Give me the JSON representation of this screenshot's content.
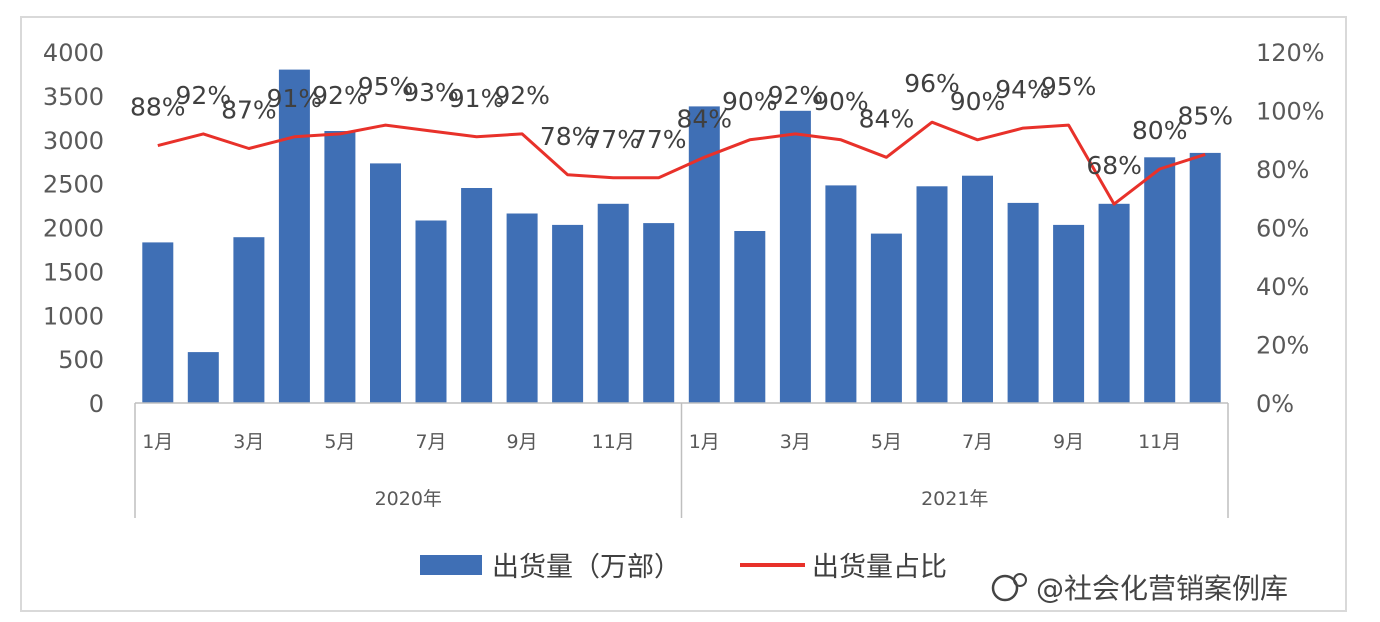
{
  "chart_data": {
    "type": "bar+line",
    "categories": [
      "1月",
      "2月",
      "3月",
      "4月",
      "5月",
      "6月",
      "7月",
      "8月",
      "9月",
      "10月",
      "11月",
      "12月",
      "1月",
      "2月",
      "3月",
      "4月",
      "5月",
      "6月",
      "7月",
      "8月",
      "9月",
      "10月",
      "11月",
      "12月"
    ],
    "category_labels_shown": [
      "1月",
      "",
      "3月",
      "",
      "5月",
      "",
      "7月",
      "",
      "9月",
      "",
      "11月",
      "",
      "1月",
      "",
      "3月",
      "",
      "5月",
      "",
      "7月",
      "",
      "9月",
      "",
      "11月",
      ""
    ],
    "groups": [
      {
        "label": "2020年",
        "start": 0,
        "end": 11
      },
      {
        "label": "2021年",
        "start": 12,
        "end": 23
      }
    ],
    "series": [
      {
        "name": "出货量（万部）",
        "type": "bar",
        "axis": "left",
        "color": "#3f6fb5",
        "values": [
          1830,
          580,
          1890,
          3800,
          3100,
          2730,
          2080,
          2450,
          2160,
          2030,
          2270,
          2050,
          3380,
          1960,
          3330,
          2480,
          1930,
          2470,
          2590,
          2280,
          2030,
          2270,
          2800,
          2850
        ]
      },
      {
        "name": "出货量占比",
        "type": "line",
        "axis": "right",
        "color": "#e8312a",
        "values": [
          88,
          92,
          87,
          91,
          92,
          95,
          93,
          91,
          92,
          78,
          77,
          77,
          84,
          90,
          92,
          90,
          84,
          96,
          90,
          94,
          95,
          68,
          80,
          85
        ],
        "labels": [
          "88%",
          "92%",
          "87%",
          "91%",
          "92%",
          "95%",
          "93%",
          "91%",
          "92%",
          "78%",
          "77%",
          "77%",
          "84%",
          "90%",
          "92%",
          "90%",
          "84%",
          "96%",
          "90%",
          "94%",
          "95%",
          "68%",
          "80%",
          "85%"
        ]
      }
    ],
    "y_left": {
      "min": 0,
      "max": 4000,
      "ticks": [
        "0",
        "500",
        "1000",
        "1500",
        "2000",
        "2500",
        "3000",
        "3500",
        "4000"
      ]
    },
    "y_right": {
      "min": 0,
      "max": 120,
      "ticks": [
        "0%",
        "20%",
        "40%",
        "60%",
        "80%",
        "100%",
        "120%"
      ]
    },
    "grid": false,
    "legend": {
      "position": "bottom",
      "items": [
        {
          "label": "出货量（万部）",
          "kind": "bar",
          "color": "#3f6fb5"
        },
        {
          "label": "出货量占比",
          "kind": "line",
          "color": "#e8312a"
        }
      ]
    }
  },
  "watermark": {
    "text": "@社会化营销案例库"
  }
}
